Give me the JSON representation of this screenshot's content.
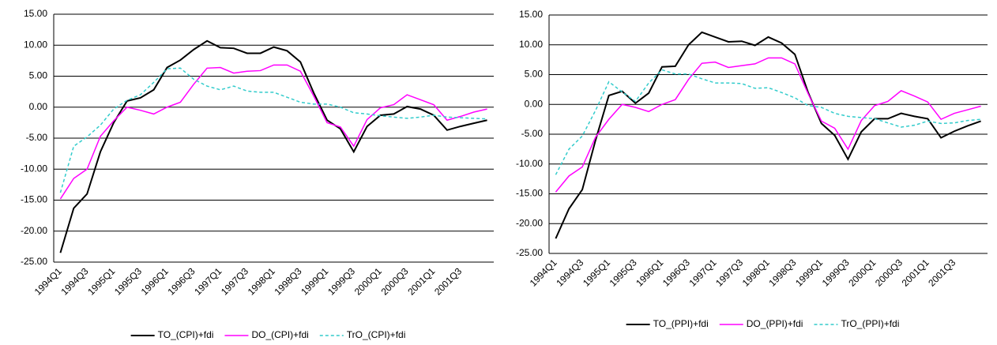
{
  "chart_data": [
    {
      "type": "line",
      "categories": [
        "1994Q1",
        null,
        "1994Q3",
        null,
        "1995Q1",
        null,
        "1995Q3",
        null,
        "1996Q1",
        null,
        "1996Q3",
        null,
        "1997Q1",
        null,
        "1997Q3",
        null,
        "1998Q1",
        null,
        "1998Q3",
        null,
        "1999Q1",
        null,
        "1999Q3",
        null,
        "2000Q1",
        null,
        "2000Q3",
        null,
        "2001Q1",
        null,
        "2001Q3",
        null,
        null
      ],
      "series": [
        {
          "name": "TO_(CPI)+fdi",
          "color": "#000000",
          "style": "solid",
          "values": [
            -23.5,
            -16.3,
            -14,
            -7.2,
            -2.5,
            1,
            1.5,
            2.8,
            6.4,
            7.6,
            9.3,
            10.7,
            9.6,
            9.5,
            8.7,
            8.7,
            9.7,
            9.1,
            7.3,
            2.3,
            -2.1,
            -3.5,
            -7.2,
            -3.1,
            -1.3,
            -1.1,
            0.1,
            -0.3,
            -1.3,
            -3.7,
            -3.1,
            -2.6,
            -2.1
          ]
        },
        {
          "name": "DO_(CPI)+fdi",
          "color": "#ff00ff",
          "style": "solid",
          "values": [
            -14.8,
            -11.5,
            -10,
            -4.7,
            -2.2,
            0,
            -0.5,
            -1.1,
            0,
            0.8,
            3.7,
            6.3,
            6.4,
            5.5,
            5.8,
            5.9,
            6.8,
            6.8,
            5.8,
            1.8,
            -2.5,
            -3.2,
            -6.3,
            -2,
            -0.1,
            0.4,
            2,
            1.2,
            0.4,
            -2.1,
            -1.5,
            -0.8,
            -0.3
          ]
        },
        {
          "name": "TrO_(CPI)+fdi",
          "color": "#33cccc",
          "style": "dashed",
          "values": [
            -13.8,
            -6.3,
            -4.8,
            -2.9,
            -0.3,
            1.1,
            2,
            4,
            6.2,
            6.3,
            4.5,
            3.4,
            2.8,
            3.4,
            2.6,
            2.4,
            2.4,
            1.6,
            0.8,
            0.5,
            0.5,
            0,
            -0.9,
            -1.1,
            -1.4,
            -1.6,
            -1.8,
            -1.6,
            -1.3,
            -1.6,
            -1.7,
            -1.8,
            -1.9
          ]
        }
      ],
      "ylim": [
        -25,
        15
      ],
      "yticks": [
        {
          "value": -25,
          "label": "-25.00"
        },
        {
          "value": -20,
          "label": "-20.00"
        },
        {
          "value": -15,
          "label": "-15.00"
        },
        {
          "value": -10,
          "label": "-10.00"
        },
        {
          "value": -5,
          "label": "-5.00"
        },
        {
          "value": 0,
          "label": "0.00"
        },
        {
          "value": 5,
          "label": "5.00"
        },
        {
          "value": 10,
          "label": "10.00"
        },
        {
          "value": 15,
          "label": "15.00"
        }
      ],
      "grid": true,
      "legend": "bottom"
    },
    {
      "type": "line",
      "categories": [
        "1994Q1",
        null,
        "1994Q3",
        null,
        "1995Q1",
        null,
        "1995Q3",
        null,
        "1996Q1",
        null,
        "1996Q3",
        null,
        "1997Q1",
        null,
        "1997Q3",
        null,
        "1998Q1",
        null,
        "1998Q3",
        null,
        "1999Q1",
        null,
        "1999Q3",
        null,
        "2000Q1",
        null,
        "2000Q3",
        null,
        "2001Q1",
        null,
        "2001Q3",
        null,
        null
      ],
      "series": [
        {
          "name": "TO_(PPI)+fdi",
          "color": "#000000",
          "style": "solid",
          "values": [
            -22.5,
            -17.5,
            -14.3,
            -6,
            1.5,
            2.2,
            0.2,
            1.9,
            6.3,
            6.4,
            10,
            12.1,
            11.3,
            10.5,
            10.6,
            9.9,
            11.3,
            10.3,
            8.4,
            2,
            -3.2,
            -5.2,
            -9.2,
            -4.6,
            -2.4,
            -2.4,
            -1.5,
            -2,
            -2.4,
            -5.6,
            -4.5,
            -3.6,
            -2.8
          ]
        },
        {
          "name": "DO_(PPI)+fdi",
          "color": "#ff00ff",
          "style": "solid",
          "values": [
            -14.7,
            -12,
            -10.5,
            -5.5,
            -2.5,
            0,
            -0.5,
            -1.2,
            0,
            0.8,
            4.2,
            6.9,
            7.1,
            6.2,
            6.5,
            6.8,
            7.8,
            7.8,
            6.8,
            1.8,
            -2.8,
            -4,
            -7.5,
            -2.7,
            -0.2,
            0.5,
            2.3,
            1.4,
            0.4,
            -2.5,
            -1.5,
            -0.9,
            -0.3
          ]
        },
        {
          "name": "TrO_(PPI)+fdi",
          "color": "#33cccc",
          "style": "dashed",
          "values": [
            -11.8,
            -7.5,
            -5.3,
            -1,
            3.8,
            2.1,
            0.5,
            3.6,
            5.8,
            5.1,
            5.1,
            4.3,
            3.6,
            3.6,
            3.5,
            2.7,
            2.8,
            2,
            1.1,
            -0.2,
            -0.5,
            -1.5,
            -2,
            -2.2,
            -2.4,
            -3.1,
            -3.8,
            -3.5,
            -2.8,
            -3.2,
            -3.1,
            -2.7,
            -2.5
          ]
        }
      ],
      "ylim": [
        -25,
        15
      ],
      "yticks": [
        {
          "value": -25,
          "label": "-25.00"
        },
        {
          "value": -20,
          "label": "-20.00"
        },
        {
          "value": -15,
          "label": "-15.00"
        },
        {
          "value": -10,
          "label": "-10.00"
        },
        {
          "value": -5,
          "label": "-5.00"
        },
        {
          "value": 0,
          "label": "0.00"
        },
        {
          "value": 5,
          "label": "5.00"
        },
        {
          "value": 10,
          "label": "10.00"
        },
        {
          "value": 15,
          "label": "15.00"
        }
      ],
      "grid": true,
      "legend": "bottom"
    }
  ]
}
